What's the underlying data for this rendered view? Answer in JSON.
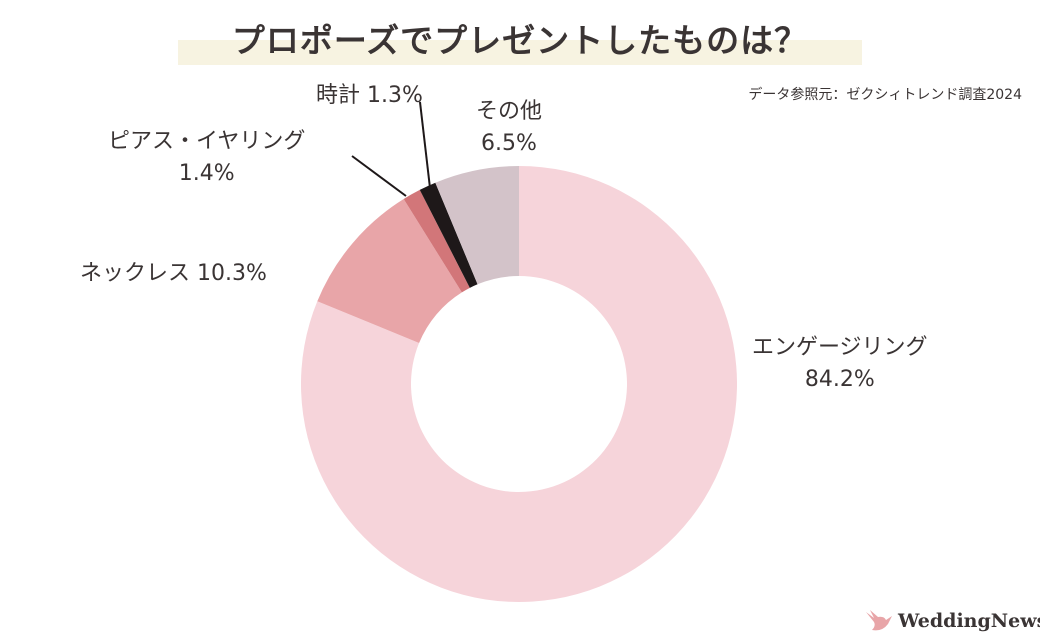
{
  "chart_data": {
    "type": "pie",
    "variant": "donut",
    "title": "プロポーズでプレゼントしたものは？",
    "source": "データ参照元：ゼクシィトレンド調査2024",
    "slices": [
      {
        "name": "エンゲージリング",
        "value": 84.2,
        "label": "84.2%",
        "color": "#f6d4da"
      },
      {
        "name": "ネックレス",
        "value": 10.3,
        "label": "10.3%",
        "color": "#e8a5a8"
      },
      {
        "name": "ピアス・イヤリング",
        "value": 1.4,
        "label": "1.4%",
        "color": "#d27679"
      },
      {
        "name": "時計",
        "value": 1.3,
        "label": "1.3%",
        "color": "#1e1819"
      },
      {
        "name": "その他",
        "value": 6.5,
        "label": "6.5%",
        "color": "#d3c3c9"
      }
    ]
  },
  "logo": {
    "text": "WeddingNews",
    "color": "#e8a5a8"
  }
}
